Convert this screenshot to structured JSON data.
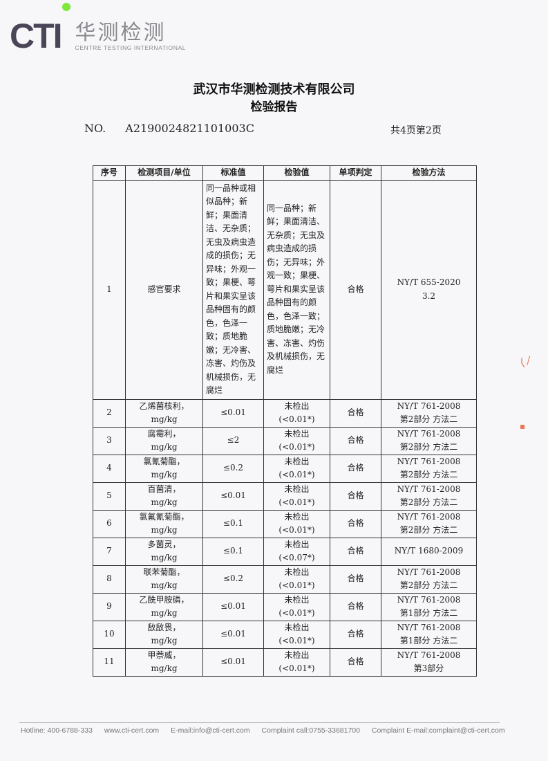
{
  "header": {
    "logo_text": "CTI",
    "brand_cn": "华测检测",
    "brand_en": "CENTRE TESTING INTERNATIONAL",
    "company": "武汉市华测检测技术有限公司",
    "doc_title": "检验报告",
    "no_label": "NO.",
    "no_value": "A2190024821101003C",
    "page_info": "共4页第2页"
  },
  "table": {
    "columns": [
      "序号",
      "检测项目/单位",
      "标准值",
      "检验值",
      "单项判定",
      "检验方法"
    ],
    "rows": [
      {
        "no": "1",
        "item": "感官要求",
        "unit": "",
        "standard": "同一品种或相似品种；新鲜；果面清洁、无杂质；无虫及病虫造成的损伤；无异味；外观一致；果梗、萼片和果实呈该品种固有的颜色，色泽一致；质地脆嫩；无冷害、冻害、灼伤及机械损伤，无腐烂",
        "result": "同一品种；新鲜；果面清洁、无杂质；无虫及病虫造成的损伤；无异味；外观一致；果梗、萼片和果实呈该品种固有的颜色，色泽一致；质地脆嫩；无冷害、冻害、灼伤及机械损伤，无腐烂",
        "result2": "",
        "judgement": "合格",
        "method": "NY/T 655-2020",
        "method2": "3.2"
      },
      {
        "no": "2",
        "item": "乙烯菌核利，",
        "unit": "mg/kg",
        "standard": "≤0.01",
        "result": "未检出",
        "result2": "(<0.01*)",
        "judgement": "合格",
        "method": "NY/T 761-2008",
        "method2": "第2部分 方法二"
      },
      {
        "no": "3",
        "item": "腐霉利，",
        "unit": "mg/kg",
        "standard": "≤2",
        "result": "未检出",
        "result2": "(<0.01*)",
        "judgement": "合格",
        "method": "NY/T 761-2008",
        "method2": "第2部分 方法二"
      },
      {
        "no": "4",
        "item": "氯氰菊酯，",
        "unit": "mg/kg",
        "standard": "≤0.2",
        "result": "未检出",
        "result2": "(<0.01*)",
        "judgement": "合格",
        "method": "NY/T 761-2008",
        "method2": "第2部分 方法二"
      },
      {
        "no": "5",
        "item": "百菌清，",
        "unit": "mg/kg",
        "standard": "≤0.01",
        "result": "未检出",
        "result2": "(<0.01*)",
        "judgement": "合格",
        "method": "NY/T 761-2008",
        "method2": "第2部分 方法二"
      },
      {
        "no": "6",
        "item": "氯氟氰菊酯，",
        "unit": "mg/kg",
        "standard": "≤0.1",
        "result": "未检出",
        "result2": "(<0.01*)",
        "judgement": "合格",
        "method": "NY/T 761-2008",
        "method2": "第2部分 方法二"
      },
      {
        "no": "7",
        "item": "多菌灵，",
        "unit": "mg/kg",
        "standard": "≤0.1",
        "result": "未检出",
        "result2": "(<0.07*)",
        "judgement": "合格",
        "method": "NY/T 1680-2009",
        "method2": ""
      },
      {
        "no": "8",
        "item": "联苯菊酯，",
        "unit": "mg/kg",
        "standard": "≤0.2",
        "result": "未检出",
        "result2": "(<0.01*)",
        "judgement": "合格",
        "method": "NY/T 761-2008",
        "method2": "第2部分 方法二"
      },
      {
        "no": "9",
        "item": "乙酰甲胺磷，",
        "unit": "mg/kg",
        "standard": "≤0.01",
        "result": "未检出",
        "result2": "(<0.01*)",
        "judgement": "合格",
        "method": "NY/T 761-2008",
        "method2": "第1部分 方法二"
      },
      {
        "no": "10",
        "item": "敌敌畏，",
        "unit": "mg/kg",
        "standard": "≤0.01",
        "result": "未检出",
        "result2": "(<0.01*)",
        "judgement": "合格",
        "method": "NY/T 761-2008",
        "method2": "第1部分 方法二"
      },
      {
        "no": "11",
        "item": "甲萘威，",
        "unit": "mg/kg",
        "standard": "≤0.01",
        "result": "未检出",
        "result2": "(<0.01*)",
        "judgement": "合格",
        "method": "NY/T 761-2008",
        "method2": "第3部分"
      }
    ]
  },
  "footer": {
    "hotline": "Hotline: 400-6788-333",
    "website": "www.cti-cert.com",
    "email": "E-mail:info@cti-cert.com",
    "complaint_call": "Complaint call:0755-33681700",
    "complaint_email": "Complaint E-mail:complaint@cti-cert.com"
  },
  "colors": {
    "logo": "#4a4658",
    "logo_dot": "#7ee83a",
    "brand_gray": "#8a8a8e",
    "stamp": "#e8552f"
  }
}
